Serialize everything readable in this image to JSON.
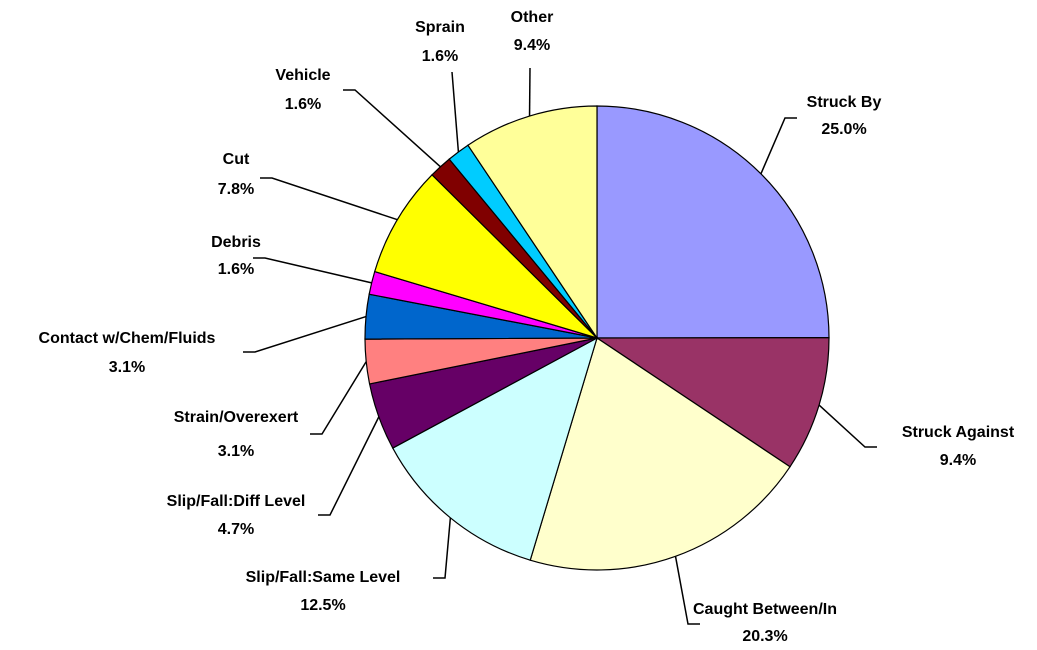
{
  "chart_data": {
    "type": "pie",
    "categories": [
      "Struck By",
      "Struck Against",
      "Caught Between/In",
      "Slip/Fall:Same Level",
      "Slip/Fall:Diff Level",
      "Strain/Overexert",
      "Contact w/Chem/Fluids",
      "Debris",
      "Cut",
      "Vehicle",
      "Sprain",
      "Other"
    ],
    "values": [
      25.0,
      9.4,
      20.3,
      12.5,
      4.7,
      3.1,
      3.1,
      1.6,
      7.8,
      1.6,
      1.6,
      9.4
    ],
    "value_labels": [
      "25.0%",
      "9.4%",
      "20.3%",
      "12.5%",
      "4.7%",
      "3.1%",
      "3.1%",
      "1.6%",
      "7.8%",
      "1.6%",
      "1.6%",
      "9.4%"
    ],
    "colors": [
      "#9999ff",
      "#993366",
      "#ffffcc",
      "#ccffff",
      "#660066",
      "#ff8080",
      "#0066cc",
      "#ff00ff",
      "#ffff00",
      "#800000",
      "#00ccff",
      "#ffff99"
    ]
  }
}
